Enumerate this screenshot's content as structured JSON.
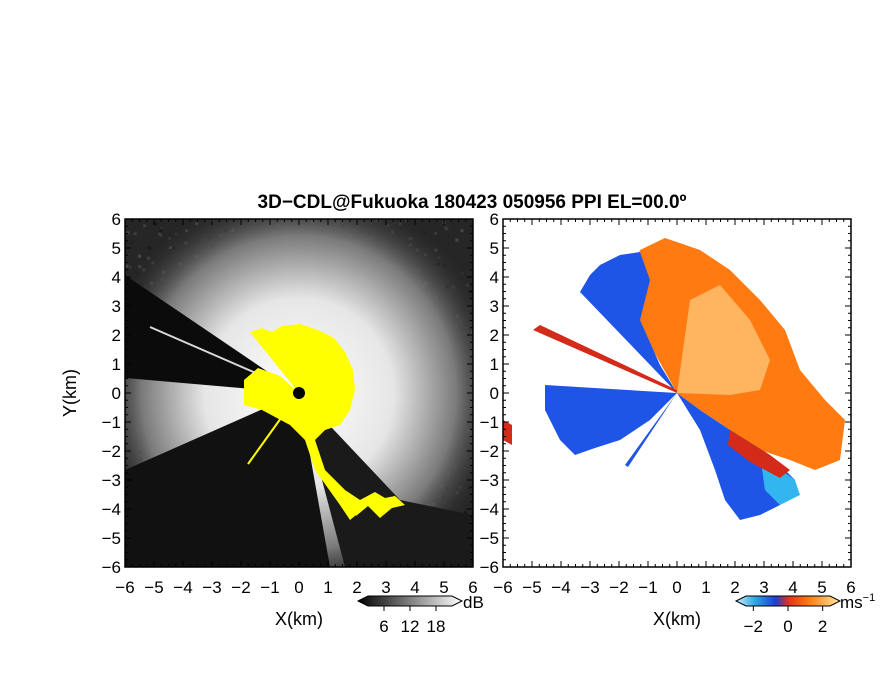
{
  "title": "3D−CDL@Fukuoka 180423 050956 PPI EL=00.0º",
  "colors": {
    "background": "#ffffff",
    "axis": "#000000",
    "echo_highlight": "#ffff00",
    "velocity_negative": "#1f55e6",
    "velocity_positive": "#ff7a10"
  },
  "chart_data": [
    {
      "type": "heatmap",
      "name": "intensity-panel",
      "field": "SNR",
      "xlabel": "X(km)",
      "ylabel": "Y(km)",
      "xlim": [
        -6,
        6
      ],
      "ylim": [
        -6,
        6
      ],
      "x_ticks": [
        "−6",
        "−5",
        "−4",
        "−3",
        "−2",
        "−1",
        "0",
        "1",
        "2",
        "3",
        "4",
        "5",
        "6"
      ],
      "y_ticks": [
        "6",
        "5",
        "4",
        "3",
        "2",
        "1",
        "0",
        "−1",
        "−2",
        "−3",
        "−4",
        "−5",
        "−6"
      ],
      "colorbar": {
        "unit": "dB",
        "ticks": [
          "6",
          "12",
          "18"
        ],
        "range": [
          0,
          24
        ],
        "colormap": "grayscale"
      },
      "center_marker": {
        "x": 0,
        "y": 0
      },
      "beam_blocked_sectors_deg": [
        [
          170,
          215
        ],
        [
          225,
          260
        ]
      ],
      "highlight_region": {
        "color": "yellow",
        "approx_radius_km": 1.8
      }
    },
    {
      "type": "heatmap",
      "name": "velocity-panel",
      "field": "Doppler velocity",
      "xlabel": "X(km)",
      "ylabel": "",
      "xlim": [
        -6,
        6
      ],
      "ylim": [
        -6,
        6
      ],
      "x_ticks": [
        "−6",
        "−5",
        "−4",
        "−3",
        "−2",
        "−1",
        "0",
        "1",
        "2",
        "3",
        "4",
        "5",
        "6"
      ],
      "y_ticks": [
        "6",
        "5",
        "4",
        "3",
        "2",
        "1",
        "0",
        "−1",
        "−2",
        "−3",
        "−4",
        "−5",
        "−6"
      ],
      "colorbar": {
        "unit": "ms",
        "unit_exponent": "−1",
        "ticks": [
          "−2",
          "0",
          "2"
        ],
        "range": [
          -3,
          3
        ],
        "colormap": "blue-red-orange"
      },
      "regions": [
        {
          "sign": "negative",
          "azimuth_deg": [
            100,
            160
          ],
          "range_km": [
            0,
            5
          ]
        },
        {
          "sign": "negative",
          "azimuth_deg": [
            200,
            290
          ],
          "range_km": [
            0,
            4.5
          ]
        },
        {
          "sign": "positive",
          "azimuth_deg": [
            -60,
            95
          ],
          "range_km": [
            0,
            6
          ]
        }
      ]
    }
  ]
}
